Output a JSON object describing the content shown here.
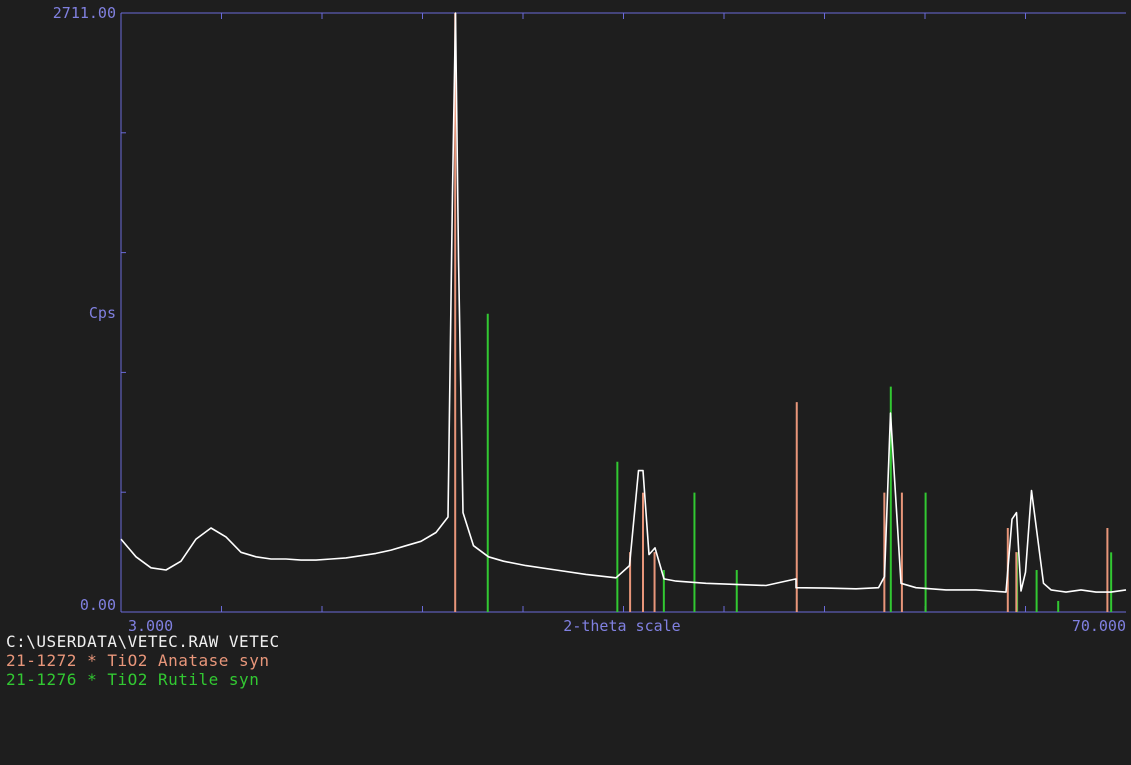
{
  "window": {
    "file_line": "C:\\USERDATA\\VETEC.RAW VETEC"
  },
  "chart_data": {
    "type": "line",
    "title": "",
    "xlabel": "2-theta scale",
    "ylabel": "Cps",
    "xlim": [
      3.0,
      70.0
    ],
    "ylim": [
      0.0,
      2711.0
    ],
    "x_start_label": "3.000",
    "x_end_label": "70.000",
    "y_max_label": "2711.00",
    "y_min_label": "0.00",
    "grid": false,
    "colors": {
      "background": "#1e1e1e",
      "axis": "#6a6ad8",
      "label": "#8080e0",
      "pattern": "#ffffff",
      "anatase": "#e8967a",
      "rutile": "#32c832"
    },
    "series": [
      {
        "kind": "measured-pattern",
        "color": "#ffffff",
        "x": [
          3.0,
          4.0,
          5.0,
          6.0,
          7.0,
          8.0,
          9.0,
          10.0,
          11.0,
          12.0,
          13.0,
          14.0,
          15.0,
          16.0,
          17.0,
          18.0,
          19.0,
          20.0,
          21.0,
          22.0,
          23.0,
          24.0,
          24.8,
          25.1,
          25.3,
          25.5,
          25.8,
          26.5,
          27.5,
          28.5,
          30.0,
          32.0,
          34.0,
          36.0,
          36.9,
          37.5,
          37.8,
          38.2,
          38.6,
          39.2,
          40.0,
          42.0,
          44.0,
          46.0,
          48.0,
          48.0,
          50.0,
          52.0,
          53.5,
          53.9,
          54.3,
          55.0,
          56.0,
          58.0,
          60.0,
          61.0,
          62.0,
          62.4,
          62.7,
          63.0,
          63.3,
          63.7,
          64.5,
          65.0,
          65.5,
          66.0,
          67.0,
          68.0,
          69.0,
          70.0
        ],
        "y": [
          330,
          250,
          200,
          190,
          230,
          330,
          380,
          340,
          270,
          250,
          240,
          240,
          235,
          235,
          240,
          245,
          255,
          265,
          280,
          300,
          320,
          360,
          430,
          1900,
          2711,
          1600,
          450,
          300,
          250,
          230,
          210,
          190,
          170,
          155,
          210,
          640,
          640,
          260,
          290,
          150,
          140,
          130,
          125,
          120,
          150,
          110,
          108,
          105,
          110,
          160,
          900,
          130,
          110,
          100,
          100,
          95,
          90,
          420,
          450,
          95,
          180,
          550,
          130,
          100,
          95,
          90,
          100,
          90,
          90,
          100
        ]
      },
      {
        "name": "21-1272 * TiO2 Anatase syn",
        "kind": "reference-sticks",
        "color": "#e8967a",
        "x": [
          25.28,
          36.94,
          37.8,
          38.57,
          48.05,
          53.89,
          55.06,
          62.12,
          62.69,
          68.76
        ],
        "y": [
          2711,
          271,
          540,
          271,
          950,
          540,
          540,
          380,
          271,
          380
        ]
      },
      {
        "name": "21-1276 * TiO2 Rutile syn",
        "kind": "reference-sticks",
        "color": "#32c832",
        "x": [
          27.45,
          36.09,
          39.19,
          41.23,
          44.05,
          54.32,
          56.64,
          62.74,
          64.04,
          65.48,
          69.01
        ],
        "y": [
          1350,
          680,
          190,
          540,
          190,
          1020,
          540,
          270,
          190,
          50,
          270
        ]
      }
    ]
  }
}
